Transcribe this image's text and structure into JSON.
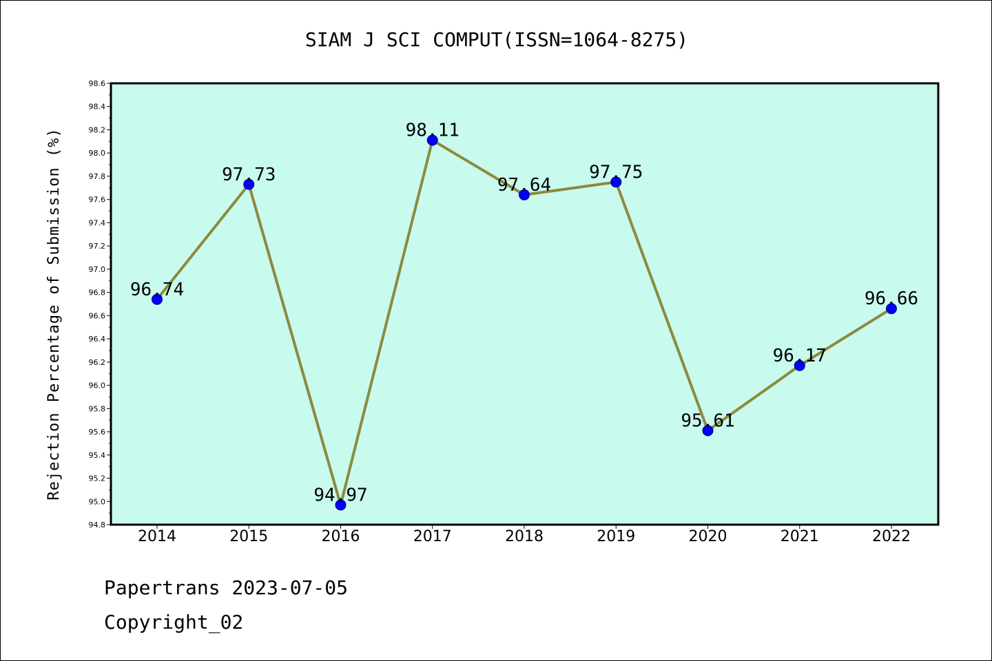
{
  "chart_data": {
    "type": "line",
    "title": "SIAM J SCI COMPUT(ISSN=1064-8275)",
    "xlabel": "",
    "ylabel": "Rejection Percentage of Submission (%)",
    "categories": [
      "2014",
      "2015",
      "2016",
      "2017",
      "2018",
      "2019",
      "2020",
      "2021",
      "2022"
    ],
    "series": [
      {
        "values": [
          96.74,
          97.73,
          94.97,
          98.11,
          97.64,
          97.75,
          95.61,
          96.17,
          96.66
        ],
        "data_labels": [
          "96.74",
          "97.73",
          "94.97",
          "98.11",
          "97.64",
          "97.75",
          "95.61",
          "96.17",
          "96.66"
        ]
      }
    ],
    "ylim": [
      94.8,
      98.6
    ],
    "yticks": [
      "94.8",
      "95.0",
      "95.2",
      "95.4",
      "95.6",
      "95.8",
      "96.0",
      "96.2",
      "96.4",
      "96.6",
      "96.8",
      "97.0",
      "97.2",
      "97.4",
      "97.6",
      "97.8",
      "98.0",
      "98.2",
      "98.4",
      "98.6"
    ],
    "grid": false,
    "colors": {
      "plot_background": "#c8faee",
      "line": "#8c8a3c",
      "marker_fill": "#0000ff",
      "marker_edge": "#00007a"
    }
  },
  "footer": {
    "line1": "Papertrans 2023-07-05",
    "line2": "Copyright_02"
  }
}
